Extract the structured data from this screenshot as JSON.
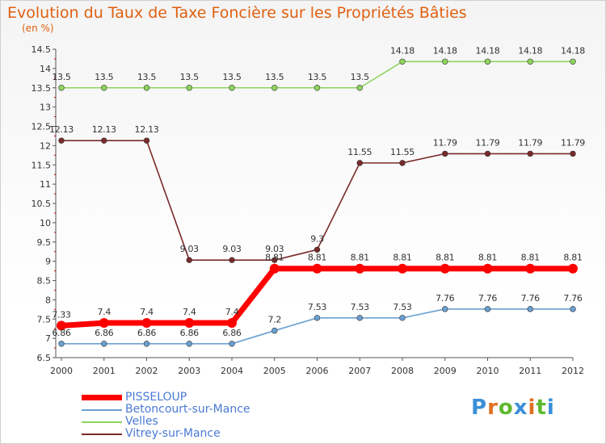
{
  "chart_data": {
    "type": "line",
    "title": "Evolution du Taux de Taxe Foncière sur les Propriétés Bâties",
    "ylabel": "(en %)",
    "categories": [
      "2000",
      "2001",
      "2002",
      "2003",
      "2004",
      "2005",
      "2006",
      "2007",
      "2008",
      "2009",
      "2010",
      "2011",
      "2012"
    ],
    "ylim": [
      6.5,
      14.5
    ],
    "yticks": [
      "6.5",
      "7",
      "7.5",
      "8",
      "8.5",
      "9",
      "9.5",
      "10",
      "10.5",
      "11",
      "11.5",
      "12",
      "12.5",
      "13",
      "13.5",
      "14",
      "14.5"
    ],
    "series": [
      {
        "name": "PISSELOUP",
        "color": "#ff0000",
        "values": [
          7.33,
          7.4,
          7.4,
          7.4,
          7.4,
          8.81,
          8.81,
          8.81,
          8.81,
          8.81,
          8.81,
          8.81,
          8.81
        ],
        "labels": [
          "7.33",
          "7.4",
          "7.4",
          "7.4",
          "7.4",
          "8.81",
          "8.81",
          "8.81",
          "8.81",
          "8.81",
          "8.81",
          "8.81",
          "8.81"
        ]
      },
      {
        "name": "Betoncourt-sur-Mance",
        "color": "#6aa0d2",
        "values": [
          6.86,
          6.86,
          6.86,
          6.86,
          6.86,
          7.2,
          7.53,
          7.53,
          7.53,
          7.76,
          7.76,
          7.76,
          7.76
        ],
        "labels": [
          "6.86",
          "6.86",
          "6.86",
          "6.86",
          "6.86",
          "7.2",
          "7.53",
          "7.53",
          "7.53",
          "7.76",
          "7.76",
          "7.76",
          "7.76"
        ]
      },
      {
        "name": "Velles",
        "color": "#8fd45e",
        "values": [
          13.5,
          13.5,
          13.5,
          13.5,
          13.5,
          13.5,
          13.5,
          13.5,
          14.18,
          14.18,
          14.18,
          14.18,
          14.18
        ],
        "labels": [
          "13.5",
          "13.5",
          "13.5",
          "13.5",
          "13.5",
          "13.5",
          "13.5",
          "13.5",
          "14.18",
          "14.18",
          "14.18",
          "14.18",
          "14.18"
        ]
      },
      {
        "name": "Vitrey-sur-Mance",
        "color": "#7a2a2a",
        "values": [
          12.13,
          12.13,
          12.13,
          9.03,
          9.03,
          9.03,
          9.3,
          11.55,
          11.55,
          11.79,
          11.79,
          11.79,
          11.79
        ],
        "labels": [
          "12.13",
          "12.13",
          "12.13",
          "9.03",
          "9.03",
          "9.03",
          "9.3",
          "11.55",
          "11.55",
          "11.79",
          "11.79",
          "11.79",
          "11.79"
        ]
      }
    ],
    "legend": "bottom-left",
    "grid": false
  },
  "brand": {
    "name": "Proxiti"
  }
}
